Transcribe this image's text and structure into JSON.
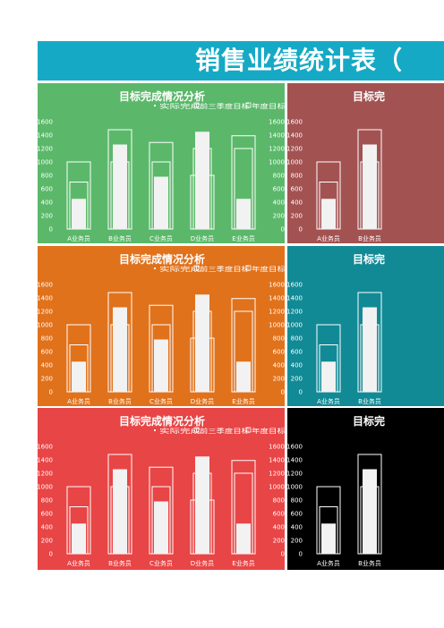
{
  "header": {
    "title": "销售业绩统计表（"
  },
  "panel_colors": [
    "#5bb86a",
    "#a35252",
    "#e0721c",
    "#128a96",
    "#e84546",
    "#000000"
  ],
  "chart_data": [
    {
      "type": "bar",
      "title": "目标完成情况分析",
      "legend": [
        "实际完成",
        "前三季度目标",
        "年度目标"
      ],
      "categories": [
        "A业务员",
        "B业务员",
        "C业务员",
        "D业务员",
        "E业务员"
      ],
      "series": [
        {
          "name": "实际完成",
          "values": [
            450,
            1260,
            780,
            1450,
            450
          ]
        },
        {
          "name": "前三季度目标",
          "values": [
            700,
            1000,
            1000,
            1200,
            1200
          ]
        },
        {
          "name": "年度目标",
          "values": [
            1000,
            1480,
            1290,
            800,
            1390
          ]
        }
      ],
      "yticks": [
        0,
        200,
        400,
        600,
        800,
        1000,
        1200,
        1400,
        1600
      ],
      "ylim": [
        0,
        1600
      ]
    },
    {
      "type": "bar",
      "title": "目标完",
      "legend": [],
      "categories": [
        "A业务员",
        "B业务员"
      ],
      "series": [
        {
          "name": "实际完成",
          "values": [
            450,
            1260
          ]
        },
        {
          "name": "前三季度目标",
          "values": [
            700,
            1000
          ]
        },
        {
          "name": "年度目标",
          "values": [
            1000,
            1480
          ]
        }
      ],
      "yticks": [
        0,
        200,
        400,
        600,
        800,
        1000,
        1200,
        1400,
        1600
      ],
      "ylim": [
        0,
        1600
      ]
    },
    {
      "type": "bar",
      "title": "目标完成情况分析",
      "legend": [
        "实际完成",
        "前三季度目标",
        "年度目标"
      ],
      "categories": [
        "A业务员",
        "B业务员",
        "C业务员",
        "D业务员",
        "E业务员"
      ],
      "series": [
        {
          "name": "实际完成",
          "values": [
            450,
            1260,
            780,
            1450,
            450
          ]
        },
        {
          "name": "前三季度目标",
          "values": [
            700,
            1000,
            1000,
            1200,
            1200
          ]
        },
        {
          "name": "年度目标",
          "values": [
            1000,
            1480,
            1290,
            800,
            1390
          ]
        }
      ],
      "yticks": [
        0,
        200,
        400,
        600,
        800,
        1000,
        1200,
        1400,
        1600
      ],
      "ylim": [
        0,
        1600
      ]
    },
    {
      "type": "bar",
      "title": "目标完",
      "legend": [],
      "categories": [
        "A业务员",
        "B业务员"
      ],
      "series": [
        {
          "name": "实际完成",
          "values": [
            450,
            1260
          ]
        },
        {
          "name": "前三季度目标",
          "values": [
            700,
            1000
          ]
        },
        {
          "name": "年度目标",
          "values": [
            1000,
            1480
          ]
        }
      ],
      "yticks": [
        0,
        200,
        400,
        600,
        800,
        1000,
        1200,
        1400,
        1600
      ],
      "ylim": [
        0,
        1600
      ]
    },
    {
      "type": "bar",
      "title": "目标完成情况分析",
      "legend": [
        "实际完成",
        "前三季度目标",
        "年度目标"
      ],
      "categories": [
        "A业务员",
        "B业务员",
        "C业务员",
        "D业务员",
        "E业务员"
      ],
      "series": [
        {
          "name": "实际完成",
          "values": [
            450,
            1260,
            780,
            1450,
            450
          ]
        },
        {
          "name": "前三季度目标",
          "values": [
            700,
            1000,
            1000,
            1200,
            1200
          ]
        },
        {
          "name": "年度目标",
          "values": [
            1000,
            1480,
            1290,
            800,
            1390
          ]
        }
      ],
      "yticks": [
        0,
        200,
        400,
        600,
        800,
        1000,
        1200,
        1400,
        1600
      ],
      "ylim": [
        0,
        1600
      ]
    },
    {
      "type": "bar",
      "title": "目标完",
      "legend": [],
      "categories": [
        "A业务员",
        "B业务员"
      ],
      "series": [
        {
          "name": "实际完成",
          "values": [
            450,
            1260
          ]
        },
        {
          "name": "前三季度目标",
          "values": [
            700,
            1000
          ]
        },
        {
          "name": "年度目标",
          "values": [
            1000,
            1480
          ]
        }
      ],
      "yticks": [
        0,
        200,
        400,
        600,
        800,
        1000,
        1200,
        1400,
        1600
      ],
      "ylim": [
        0,
        1600
      ]
    }
  ]
}
